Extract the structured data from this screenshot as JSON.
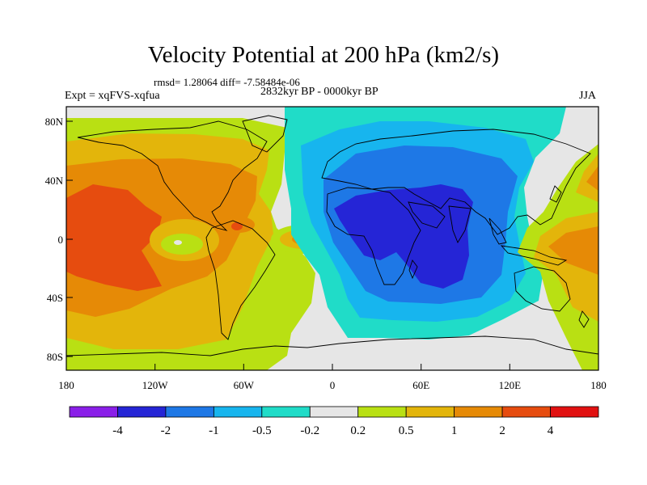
{
  "title": "Velocity Potential at 200 hPa (km2/s)",
  "stats": "rmsd= 1.28064 diff= -7.58484e-06",
  "experiment": "Expt = xqFVS-xqfua",
  "period": "2832kyr BP - 0000kyr BP",
  "season": "JJA",
  "map": {
    "lat_ticks": [
      "80N",
      "40N",
      "0",
      "40S",
      "80S"
    ],
    "lon_ticks": [
      "180",
      "120W",
      "60W",
      "0",
      "60E",
      "120E",
      "180"
    ]
  },
  "colorbar": {
    "colors": [
      "#8a1fe8",
      "#2525d6",
      "#1e78e6",
      "#17b5ee",
      "#20dcc8",
      "#e6e6e6",
      "#b9e013",
      "#e3b50b",
      "#e68a06",
      "#e64c0f",
      "#e11111"
    ],
    "labels": [
      "-4",
      "-2",
      "-1",
      "-0.5",
      "-0.2",
      "0.2",
      "0.5",
      "1",
      "2",
      "4"
    ]
  }
}
